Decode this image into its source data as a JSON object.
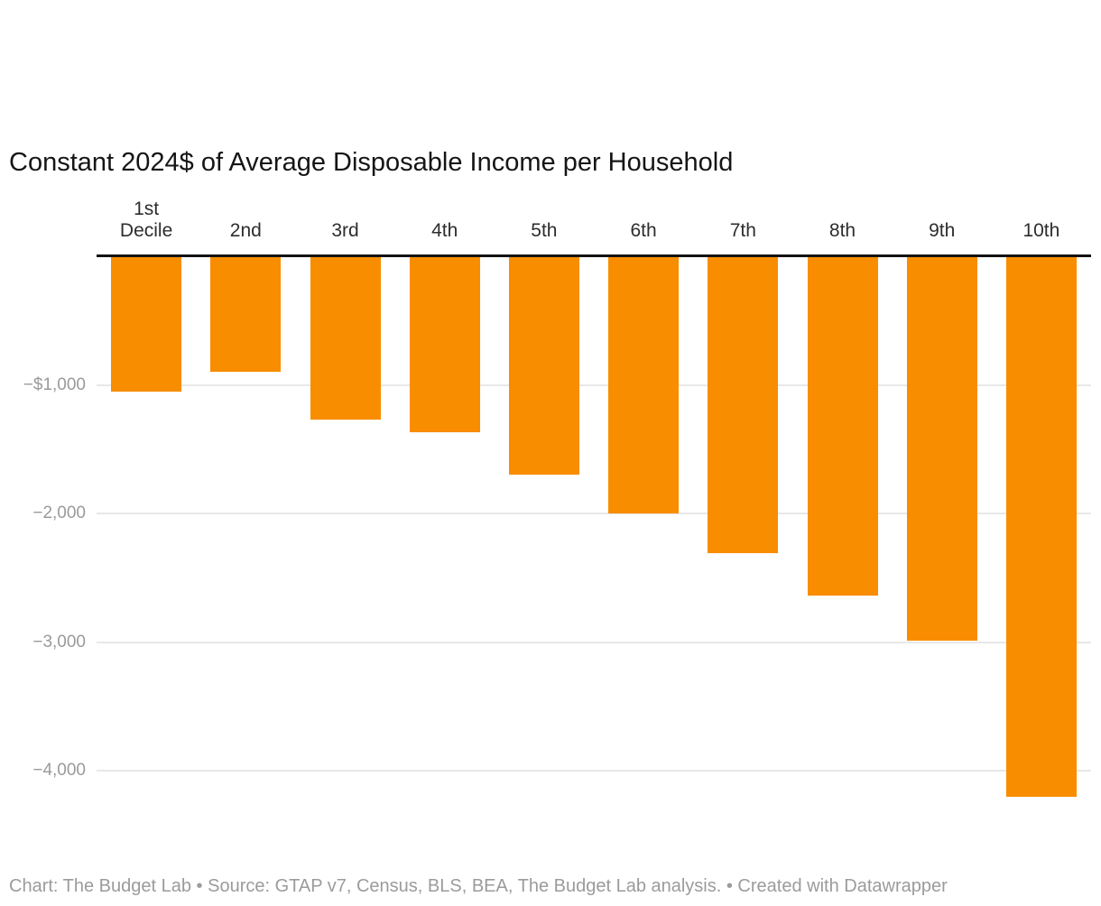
{
  "footer": {
    "text": "Chart: The Budget Lab • Source: GTAP v7, Census, BLS, BEA, The Budget Lab analysis. • Created with Datawrapper"
  },
  "chart_data": {
    "type": "bar",
    "title": "Constant 2024$ of Average Disposable Income per Household",
    "categories": [
      "1st Decile",
      "2nd",
      "3rd",
      "4th",
      "5th",
      "6th",
      "7th",
      "8th",
      "9th",
      "10th"
    ],
    "values": [
      -1050,
      -900,
      -1270,
      -1365,
      -1700,
      -2000,
      -2310,
      -2640,
      -2990,
      -4200
    ],
    "xlabel": "",
    "ylabel": "",
    "ylim": [
      -4400,
      0
    ],
    "yticks": [
      {
        "value": -1000,
        "label": "−$1,000"
      },
      {
        "value": -2000,
        "label": "−2,000"
      },
      {
        "value": -3000,
        "label": "−3,000"
      },
      {
        "value": -4000,
        "label": "−4,000"
      }
    ],
    "grid": "horizontal",
    "legend": "none",
    "bar_color": "#f88d00",
    "axis_line_color": "#131313",
    "gridline_color": "#e8e8e8",
    "tick_label_color": "#9a9a9a"
  }
}
